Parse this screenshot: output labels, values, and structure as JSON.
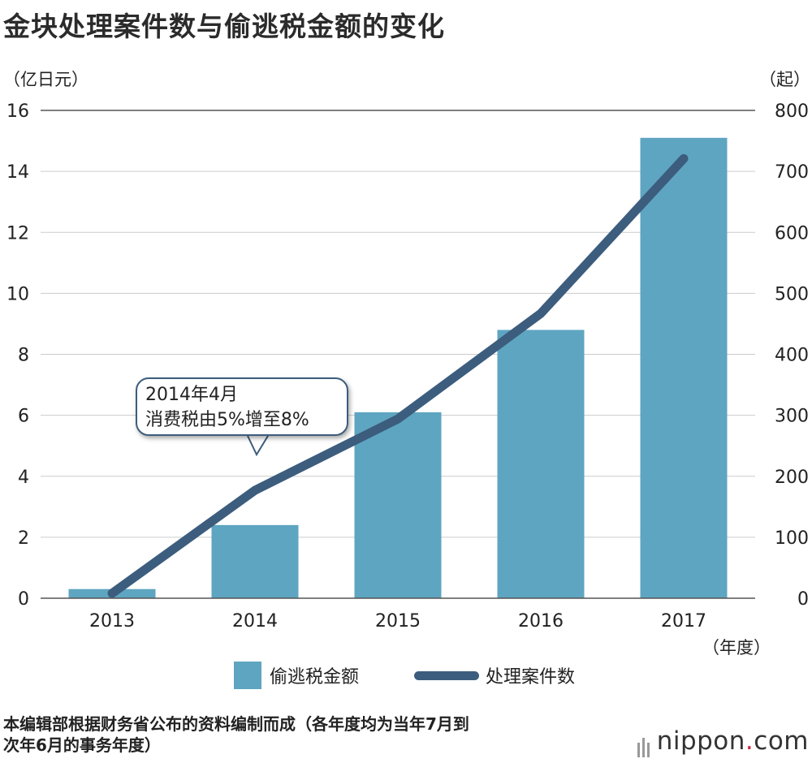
{
  "title": "金块处理案件数与偷逃税金额的变化",
  "left_unit": "（亿日元）",
  "right_unit": "（起）",
  "x_unit": "（年度）",
  "annotation": {
    "line1": "2014年4月",
    "line2": "消费税由5%增至8%"
  },
  "source_line1": "本编辑部根据财务省公布的资料编制而成（各年度均为当年7月到",
  "source_line2": "次年6月的事务年度）",
  "logo": {
    "text": "nippon",
    "dot": ".",
    "suffix": "com"
  },
  "colors": {
    "bar": "#5ea5c1",
    "line": "#3c5d7d",
    "grid": "#cccccc"
  },
  "chart_data": {
    "type": "bar",
    "categories": [
      "2013",
      "2014",
      "2015",
      "2016",
      "2017"
    ],
    "series": [
      {
        "name": "偷逃税金额",
        "type": "bar",
        "axis": "left",
        "values": [
          0.3,
          2.4,
          6.1,
          8.8,
          15.1
        ]
      },
      {
        "name": "处理案件数",
        "type": "line",
        "axis": "right",
        "values": [
          8,
          177,
          294,
          467,
          721
        ]
      }
    ],
    "ylim_left": [
      0,
      16
    ],
    "yticks_left": [
      "0",
      "2",
      "4",
      "6",
      "8",
      "10",
      "12",
      "14",
      "16"
    ],
    "ylim_right": [
      0,
      800
    ],
    "yticks_right": [
      "0",
      "100",
      "200",
      "300",
      "400",
      "500",
      "600",
      "700",
      "800"
    ],
    "grid": true,
    "legend_position": "bottom"
  }
}
